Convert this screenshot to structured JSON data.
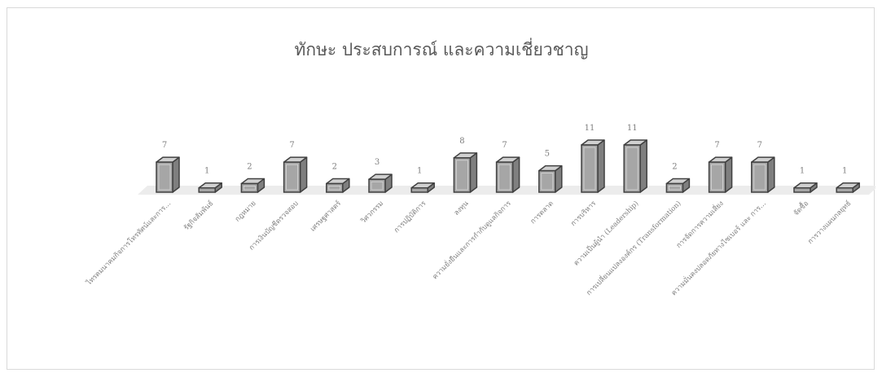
{
  "chart_data": {
    "type": "bar",
    "title": "ทักษะ ประสบการณ์ และความเชี่ยวชาญ",
    "categories": [
      "ไทรคมนาคมกิจการโทรทัศน์และการ…",
      "รัฐกิจสัมพันธ์",
      "กฎหมาย",
      "การเงินบัญชีตรวจสอบ",
      "เศรษฐศาสตร์",
      "วิศวกรรม",
      "การปฏิบัติการ",
      "ลงทุน",
      "ความยั่งยืนและการกำกับดูแลกิจการ",
      "การตลาด",
      "การบริหาร",
      "ความเป็นผู้นำ (Leadership)",
      "การเปลี่ยนแปลงองค์กร (Transformation)",
      "การจัดการความเสี่ยง",
      "ความมั่นคงปลอดภัยทางไซเบอร์ และ การ…",
      "จัดซื้อ",
      "การวางแผนกลยุทธ์"
    ],
    "values": [
      7,
      1,
      2,
      7,
      2,
      3,
      1,
      8,
      7,
      5,
      11,
      11,
      2,
      7,
      7,
      1,
      1
    ],
    "ylim": [
      0,
      11
    ],
    "grid": false,
    "legend": "none",
    "colors": {
      "bar_front": "#a6a6a6",
      "bar_side": "#7f7f7f",
      "bar_top": "#d0d0d0",
      "edge": "#404040",
      "floor": "#ececec"
    }
  }
}
